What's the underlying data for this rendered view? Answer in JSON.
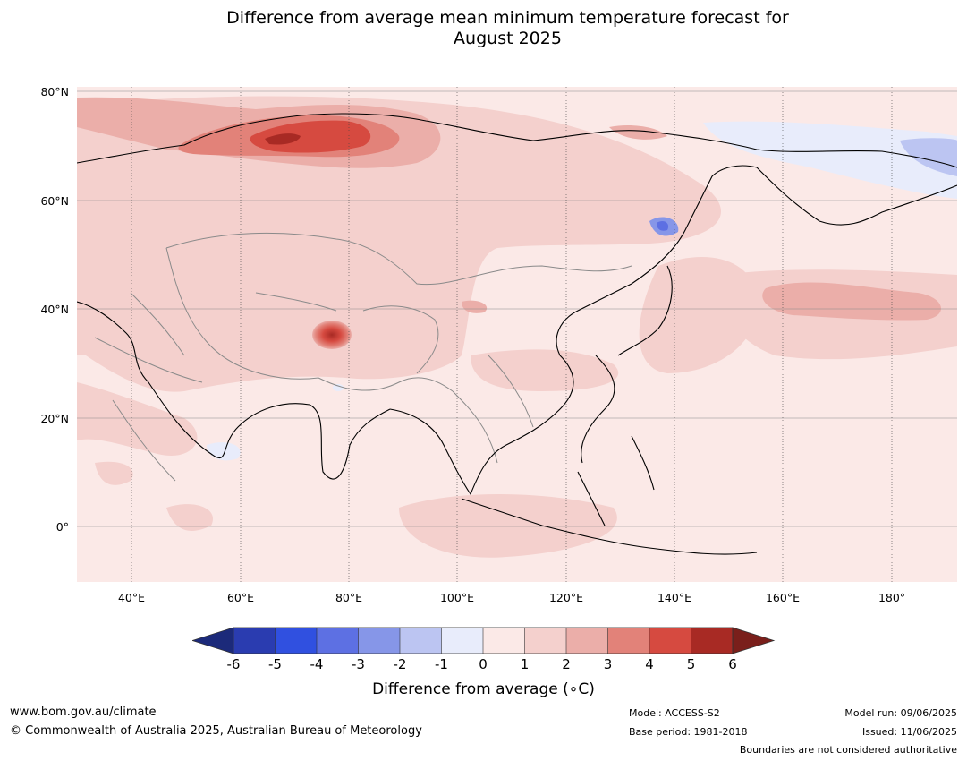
{
  "title_line1": "Difference from average mean minimum temperature forecast for",
  "title_line2": "August 2025",
  "lat_labels": [
    "80°N",
    "60°N",
    "40°N",
    "20°N",
    "0°"
  ],
  "lon_labels": [
    "40°E",
    "60°E",
    "80°E",
    "100°E",
    "120°E",
    "140°E",
    "160°E",
    "180°"
  ],
  "legend": {
    "title": "Difference from average (∘C)",
    "ticks": [
      "-6",
      "-5",
      "-4",
      "-3",
      "-2",
      "-1",
      "0",
      "1",
      "2",
      "3",
      "4",
      "5",
      "6"
    ],
    "colors": [
      "#1c2a7a",
      "#2a3cb0",
      "#3050e0",
      "#5d70e3",
      "#8696e8",
      "#bcc5f2",
      "#e8ecfb",
      "#fbe9e7",
      "#f4d0cd",
      "#ebaea9",
      "#e28279",
      "#d64a40",
      "#a82a24",
      "#7a1f1b"
    ]
  },
  "footer": {
    "website": "www.bom.gov.au/climate",
    "copyright": "© Commonwealth of Australia 2025, Australian Bureau of Meteorology",
    "model": "Model: ACCESS-S2",
    "base_period": "Base period: 1981-2018",
    "model_run": "Model run: 09/06/2025",
    "issued": "Issued: 11/06/2025",
    "disclaimer": "Boundaries are not considered authoritative"
  }
}
